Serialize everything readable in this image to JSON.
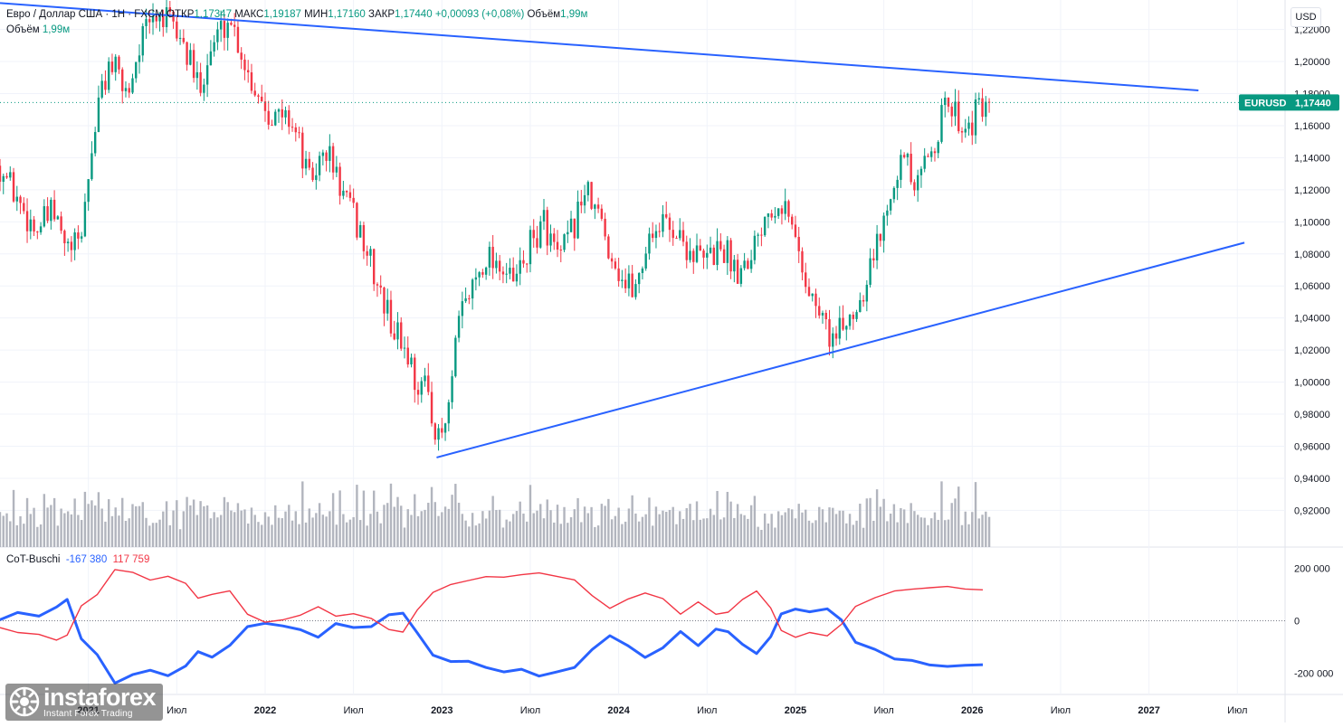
{
  "header": {
    "symbol_text": "Евро / Доллар США · 1Н · FXCM",
    "open_label": "ОТКР",
    "open": "1,17347",
    "high_label": "МАКС",
    "high": "1,19187",
    "low_label": "МИН",
    "low": "1,17160",
    "close_label": "ЗАКР",
    "close": "1,17440",
    "change": "+0,00093 (+0,08%)",
    "volume_label": "Объём",
    "volume": "1,99м"
  },
  "volume_line": {
    "label": "Объём",
    "value": "1,99м"
  },
  "currency": "USD",
  "price_tag": {
    "symbol": "EURUSD",
    "value": "1,17440",
    "color": "#089981"
  },
  "cot": {
    "name": "CoT-Buschi",
    "blue_value": "-167 380",
    "red_value": "117 759"
  },
  "logo": {
    "text": "instaforex",
    "sub": "Instant Forex Trading"
  },
  "colors": {
    "up": "#089981",
    "down": "#f23645",
    "trend": "#2962ff",
    "cot_blue": "#2962ff",
    "cot_red": "#f23645",
    "volume": "#b2b5be"
  },
  "chart_data": [
    {
      "type": "candlestick",
      "symbol": "EURUSD",
      "y_ticks": [
        "1,22000",
        "1,20000",
        "1,18000",
        "1,16000",
        "1,14000",
        "1,12000",
        "1,10000",
        "1,08000",
        "1,06000",
        "1,04000",
        "1,02000",
        "1,00000",
        "0,98000",
        "0,96000",
        "0,94000",
        "0,92000"
      ],
      "ylim": [
        0.905,
        1.235
      ],
      "x_ticks": [
        "2021",
        "Июл",
        "2022",
        "Июл",
        "2023",
        "Июл",
        "2024",
        "Июл",
        "2025",
        "Июл",
        "2026",
        "Июл",
        "2027",
        "Июл"
      ],
      "year_ticks": [
        "2021",
        "2022",
        "2023",
        "2024",
        "2025",
        "2026",
        "2027"
      ],
      "price_path": [
        {
          "t": 2020.5,
          "v": 1.135
        },
        {
          "t": 2020.62,
          "v": 1.11
        },
        {
          "t": 2020.7,
          "v": 1.095
        },
        {
          "t": 2020.8,
          "v": 1.105
        },
        {
          "t": 2020.88,
          "v": 1.082
        },
        {
          "t": 2020.95,
          "v": 1.085
        },
        {
          "t": 2021.05,
          "v": 1.17
        },
        {
          "t": 2021.12,
          "v": 1.2
        },
        {
          "t": 2021.22,
          "v": 1.18
        },
        {
          "t": 2021.3,
          "v": 1.215
        },
        {
          "t": 2021.4,
          "v": 1.23
        },
        {
          "t": 2021.52,
          "v": 1.215
        },
        {
          "t": 2021.62,
          "v": 1.185
        },
        {
          "t": 2021.72,
          "v": 1.215
        },
        {
          "t": 2021.8,
          "v": 1.228
        },
        {
          "t": 2021.92,
          "v": 1.188
        },
        {
          "t": 2022.05,
          "v": 1.165
        },
        {
          "t": 2022.15,
          "v": 1.165
        },
        {
          "t": 2022.25,
          "v": 1.125
        },
        {
          "t": 2022.35,
          "v": 1.145
        },
        {
          "t": 2022.43,
          "v": 1.12
        },
        {
          "t": 2022.55,
          "v": 1.09
        },
        {
          "t": 2022.65,
          "v": 1.055
        },
        {
          "t": 2022.72,
          "v": 1.035
        },
        {
          "t": 2022.8,
          "v": 1.02
        },
        {
          "t": 2022.86,
          "v": 0.998
        },
        {
          "t": 2022.93,
          "v": 0.995
        },
        {
          "t": 2022.97,
          "v": 0.96
        },
        {
          "t": 2023.03,
          "v": 0.975
        },
        {
          "t": 2023.1,
          "v": 1.04
        },
        {
          "t": 2023.17,
          "v": 1.06
        },
        {
          "t": 2023.25,
          "v": 1.08
        },
        {
          "t": 2023.33,
          "v": 1.075
        },
        {
          "t": 2023.4,
          "v": 1.06
        },
        {
          "t": 2023.5,
          "v": 1.085
        },
        {
          "t": 2023.58,
          "v": 1.1
        },
        {
          "t": 2023.66,
          "v": 1.075
        },
        {
          "t": 2023.74,
          "v": 1.095
        },
        {
          "t": 2023.8,
          "v": 1.12
        },
        {
          "t": 2023.88,
          "v": 1.105
        },
        {
          "t": 2023.96,
          "v": 1.08
        },
        {
          "t": 2024.04,
          "v": 1.06
        },
        {
          "t": 2024.1,
          "v": 1.06
        },
        {
          "t": 2024.18,
          "v": 1.095
        },
        {
          "t": 2024.28,
          "v": 1.1
        },
        {
          "t": 2024.38,
          "v": 1.085
        },
        {
          "t": 2024.48,
          "v": 1.075
        },
        {
          "t": 2024.58,
          "v": 1.085
        },
        {
          "t": 2024.68,
          "v": 1.07
        },
        {
          "t": 2024.76,
          "v": 1.085
        },
        {
          "t": 2024.84,
          "v": 1.11
        },
        {
          "t": 2024.92,
          "v": 1.115
        },
        {
          "t": 2025.0,
          "v": 1.09
        },
        {
          "t": 2025.08,
          "v": 1.055
        },
        {
          "t": 2025.15,
          "v": 1.04
        },
        {
          "t": 2025.22,
          "v": 1.025
        },
        {
          "t": 2025.3,
          "v": 1.04
        },
        {
          "t": 2025.36,
          "v": 1.05
        },
        {
          "t": 2025.42,
          "v": 1.075
        },
        {
          "t": 2025.48,
          "v": 1.09
        },
        {
          "t": 2025.55,
          "v": 1.13
        },
        {
          "t": 2025.62,
          "v": 1.14
        },
        {
          "t": 2025.68,
          "v": 1.115
        },
        {
          "t": 2025.74,
          "v": 1.14
        },
        {
          "t": 2025.8,
          "v": 1.155
        },
        {
          "t": 2025.86,
          "v": 1.175
        },
        {
          "t": 2025.92,
          "v": 1.165
        },
        {
          "t": 2025.98,
          "v": 1.16
        },
        {
          "t": 2026.04,
          "v": 1.17
        },
        {
          "t": 2026.1,
          "v": 1.1744
        }
      ],
      "current_price": 1.1744,
      "trendlines": [
        {
          "from": {
            "t": 2020.5,
            "v": 1.2365
          },
          "to": {
            "t": 2027.28,
            "v": 1.182
          }
        },
        {
          "from": {
            "t": 2022.97,
            "v": 0.953
          },
          "to": {
            "t": 2027.54,
            "v": 1.087
          }
        }
      ]
    },
    {
      "type": "bar",
      "name": "Объём",
      "value_shown": "1,99м"
    },
    {
      "type": "line",
      "name": "CoT-Buschi",
      "y_ticks": [
        "200 000",
        "0",
        "-200 000"
      ],
      "ylim": [
        -260000,
        260000
      ],
      "series": [
        {
          "name": "-167 380",
          "color": "#2962ff",
          "points": [
            [
              2020.5,
              0
            ],
            [
              2020.6,
              30000
            ],
            [
              2020.72,
              20000
            ],
            [
              2020.82,
              55000
            ],
            [
              2020.88,
              80000
            ],
            [
              2020.96,
              -70000
            ],
            [
              2021.05,
              -130000
            ],
            [
              2021.15,
              -240000
            ],
            [
              2021.25,
              -210000
            ],
            [
              2021.35,
              -185000
            ],
            [
              2021.45,
              -210000
            ],
            [
              2021.55,
              -170000
            ],
            [
              2021.62,
              -120000
            ],
            [
              2021.7,
              -140000
            ],
            [
              2021.8,
              -100000
            ],
            [
              2021.9,
              -20000
            ],
            [
              2022.0,
              -10000
            ],
            [
              2022.1,
              -20000
            ],
            [
              2022.2,
              -40000
            ],
            [
              2022.3,
              -60000
            ],
            [
              2022.4,
              -10000
            ],
            [
              2022.5,
              -30000
            ],
            [
              2022.6,
              -20000
            ],
            [
              2022.7,
              20000
            ],
            [
              2022.78,
              30000
            ],
            [
              2022.86,
              -50000
            ],
            [
              2022.95,
              -130000
            ],
            [
              2023.05,
              -150000
            ],
            [
              2023.15,
              -160000
            ],
            [
              2023.25,
              -180000
            ],
            [
              2023.35,
              -200000
            ],
            [
              2023.45,
              -185000
            ],
            [
              2023.55,
              -215000
            ],
            [
              2023.65,
              -200000
            ],
            [
              2023.75,
              -180000
            ],
            [
              2023.85,
              -110000
            ],
            [
              2023.95,
              -60000
            ],
            [
              2024.05,
              -90000
            ],
            [
              2024.15,
              -140000
            ],
            [
              2024.25,
              -100000
            ],
            [
              2024.35,
              -40000
            ],
            [
              2024.45,
              -90000
            ],
            [
              2024.55,
              -30000
            ],
            [
              2024.62,
              -40000
            ],
            [
              2024.7,
              -90000
            ],
            [
              2024.78,
              -130000
            ],
            [
              2024.86,
              -60000
            ],
            [
              2024.92,
              30000
            ],
            [
              2025.0,
              50000
            ],
            [
              2025.08,
              40000
            ],
            [
              2025.18,
              50000
            ],
            [
              2025.26,
              0
            ],
            [
              2025.34,
              -80000
            ],
            [
              2025.45,
              -110000
            ],
            [
              2025.56,
              -140000
            ],
            [
              2025.66,
              -155000
            ],
            [
              2025.76,
              -165000
            ],
            [
              2025.86,
              -170000
            ],
            [
              2025.96,
              -175000
            ],
            [
              2026.06,
              -167380
            ]
          ]
        },
        {
          "name": "117 759",
          "color": "#f23645",
          "points": [
            [
              2020.5,
              -30000
            ],
            [
              2020.6,
              -40000
            ],
            [
              2020.72,
              -50000
            ],
            [
              2020.82,
              -75000
            ],
            [
              2020.88,
              -60000
            ],
            [
              2020.96,
              60000
            ],
            [
              2021.05,
              100000
            ],
            [
              2021.15,
              200000
            ],
            [
              2021.25,
              180000
            ],
            [
              2021.35,
              160000
            ],
            [
              2021.45,
              170000
            ],
            [
              2021.55,
              140000
            ],
            [
              2021.62,
              80000
            ],
            [
              2021.7,
              100000
            ],
            [
              2021.8,
              110000
            ],
            [
              2021.9,
              30000
            ],
            [
              2022.0,
              -10000
            ],
            [
              2022.1,
              0
            ],
            [
              2022.2,
              20000
            ],
            [
              2022.3,
              50000
            ],
            [
              2022.4,
              20000
            ],
            [
              2022.5,
              30000
            ],
            [
              2022.6,
              10000
            ],
            [
              2022.7,
              -30000
            ],
            [
              2022.78,
              -40000
            ],
            [
              2022.86,
              40000
            ],
            [
              2022.95,
              110000
            ],
            [
              2023.05,
              140000
            ],
            [
              2023.15,
              150000
            ],
            [
              2023.25,
              165000
            ],
            [
              2023.35,
              170000
            ],
            [
              2023.45,
              175000
            ],
            [
              2023.55,
              185000
            ],
            [
              2023.65,
              165000
            ],
            [
              2023.75,
              150000
            ],
            [
              2023.85,
              100000
            ],
            [
              2023.95,
              50000
            ],
            [
              2024.05,
              80000
            ],
            [
              2024.15,
              110000
            ],
            [
              2024.25,
              80000
            ],
            [
              2024.35,
              30000
            ],
            [
              2024.45,
              70000
            ],
            [
              2024.55,
              20000
            ],
            [
              2024.62,
              30000
            ],
            [
              2024.7,
              80000
            ],
            [
              2024.78,
              110000
            ],
            [
              2024.86,
              50000
            ],
            [
              2024.92,
              -40000
            ],
            [
              2025.0,
              -60000
            ],
            [
              2025.08,
              -50000
            ],
            [
              2025.18,
              -60000
            ],
            [
              2025.26,
              -10000
            ],
            [
              2025.34,
              60000
            ],
            [
              2025.45,
              90000
            ],
            [
              2025.56,
              110000
            ],
            [
              2025.66,
              125000
            ],
            [
              2025.76,
              130000
            ],
            [
              2025.86,
              130000
            ],
            [
              2025.96,
              125000
            ],
            [
              2026.06,
              117759
            ]
          ]
        }
      ]
    }
  ]
}
